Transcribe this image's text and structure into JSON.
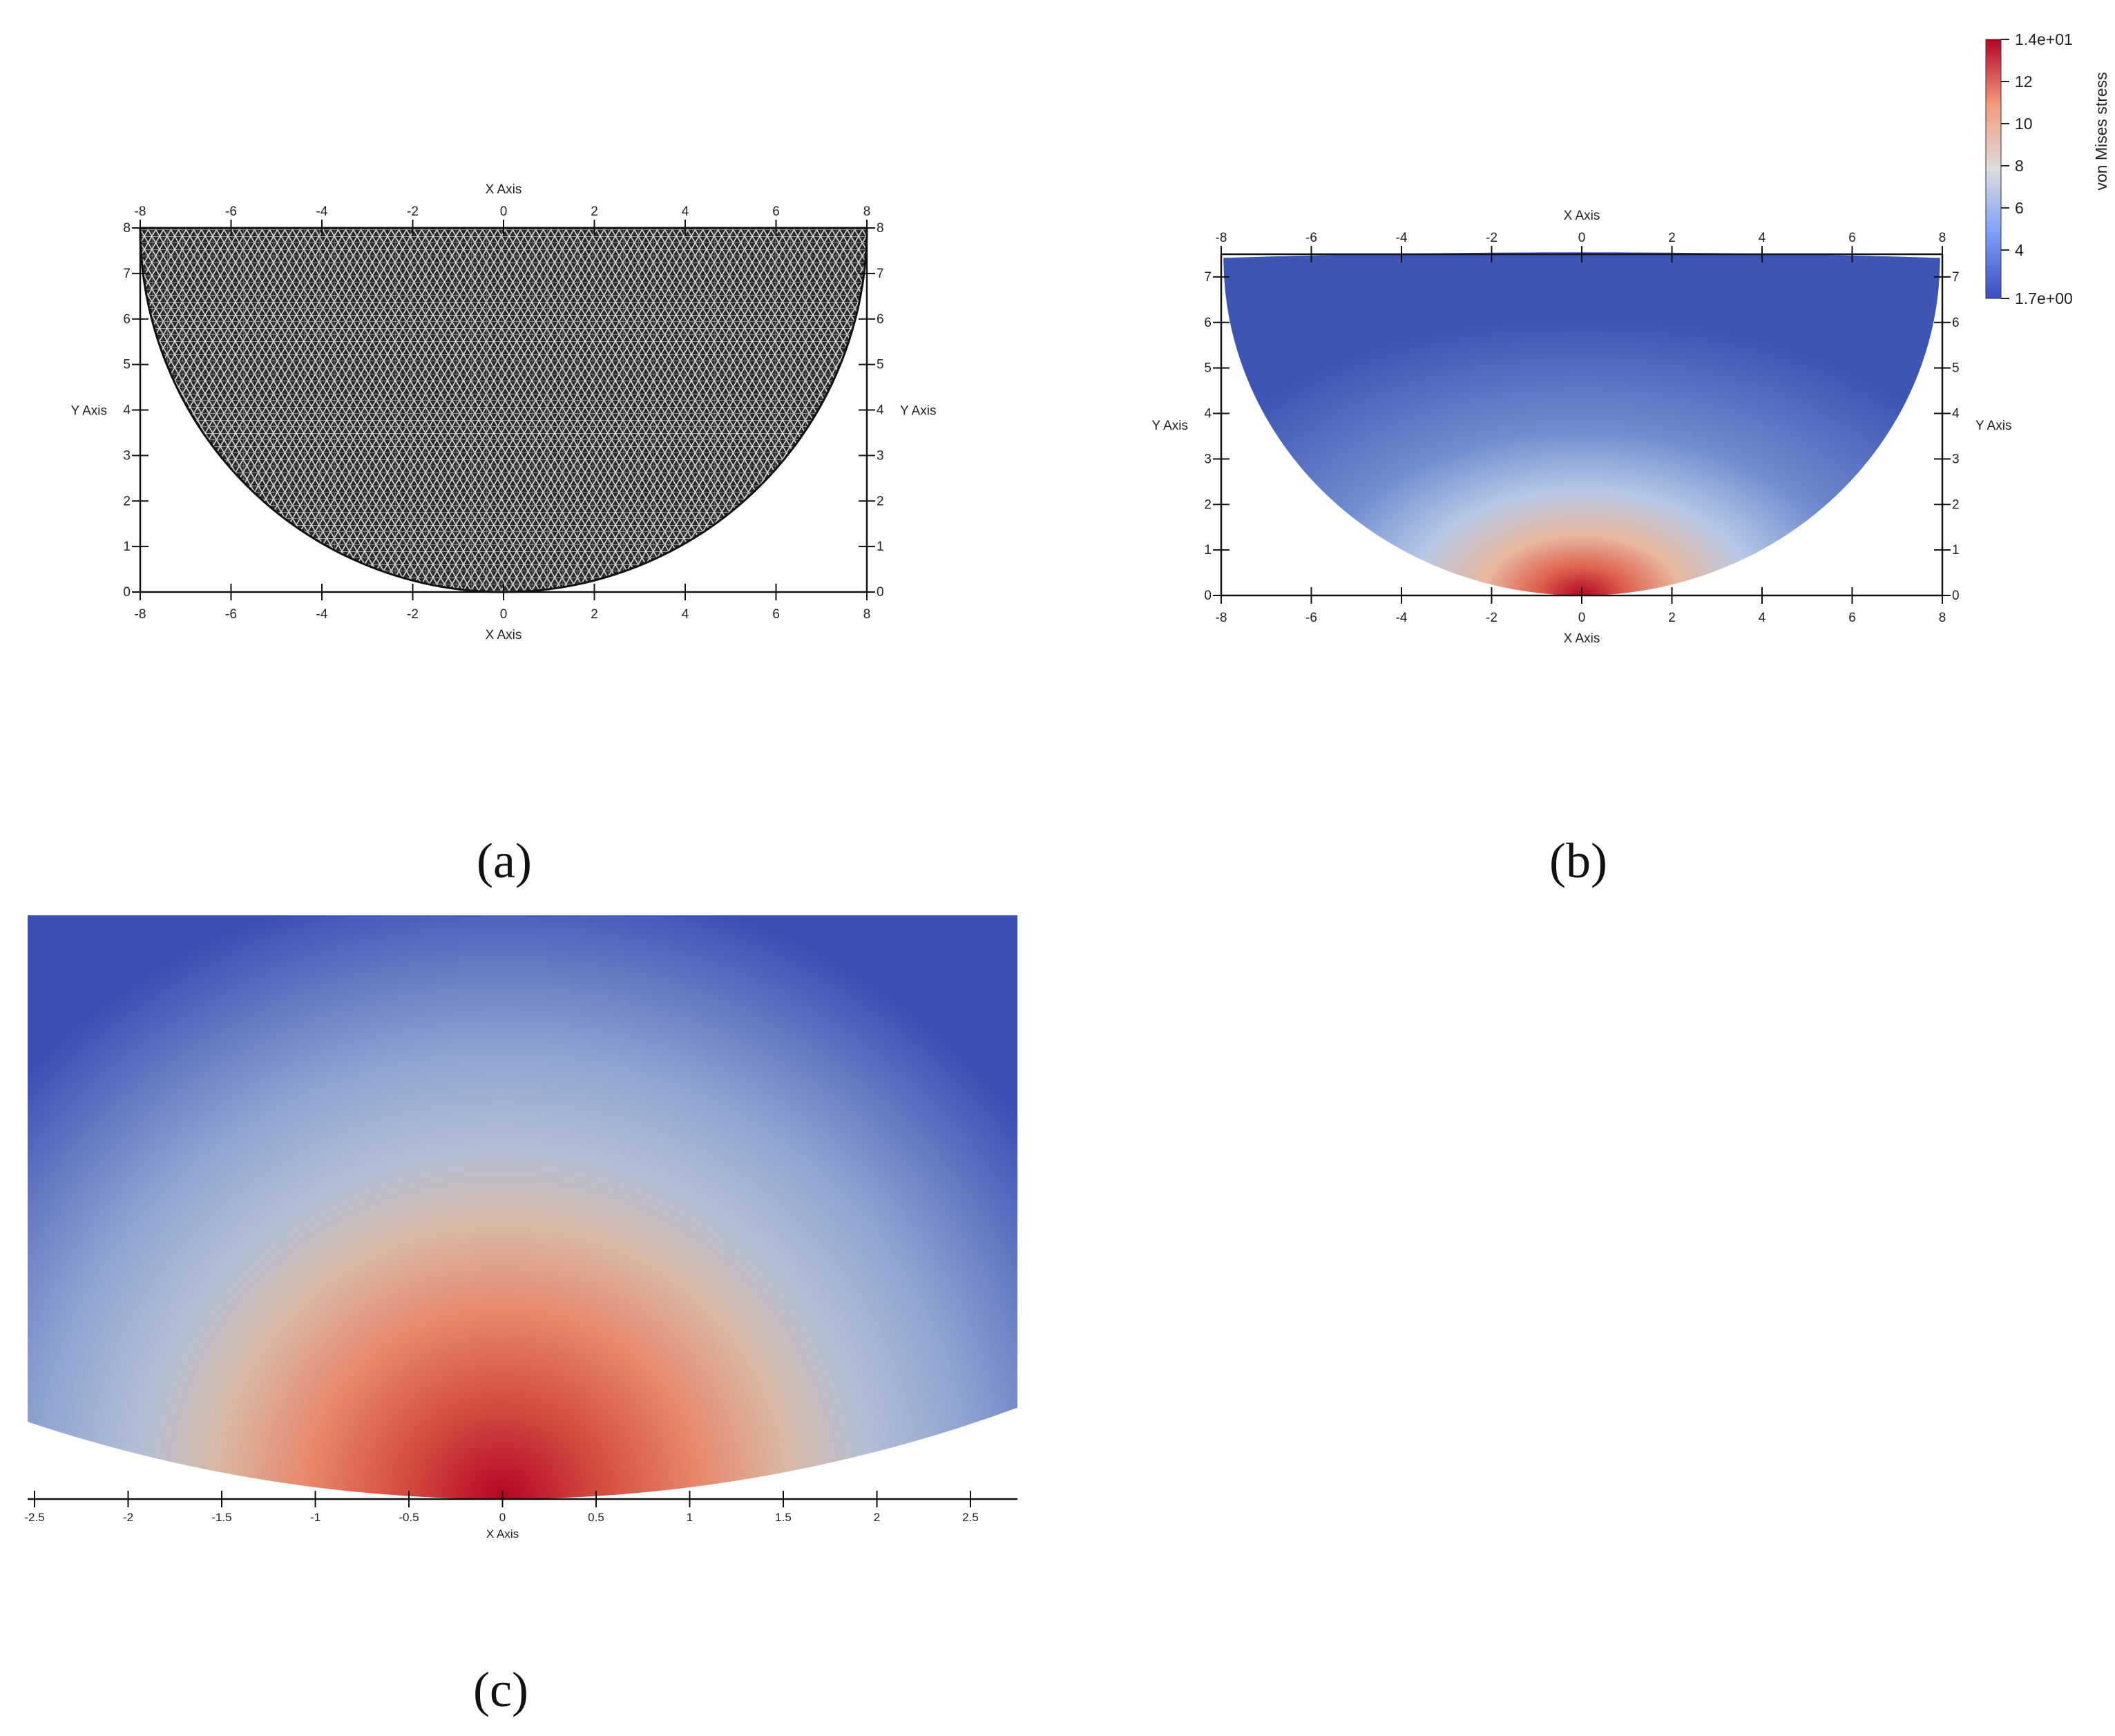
{
  "captions": {
    "a": "(a)",
    "b": "(b)",
    "c": "(c)"
  },
  "colormap": {
    "low": "#3b4cc0",
    "mid": "#dddddd",
    "high": "#b40426"
  },
  "chart_data": [
    {
      "id": "a",
      "type": "mesh",
      "xlabel_top": "X Axis",
      "xlabel_bottom": "X Axis",
      "ylabel_left": "Y Axis",
      "ylabel_right": "Y Axis",
      "xlim": [
        -8,
        8
      ],
      "ylim": [
        0,
        8
      ],
      "x_ticks": [
        "-8",
        "-6",
        "-4",
        "-2",
        "0",
        "2",
        "4",
        "6",
        "8"
      ],
      "y_ticks": [
        "0",
        "1",
        "2",
        "3",
        "4",
        "5",
        "6",
        "7",
        "8"
      ],
      "geometry": "semicircle radius 8 centered at (0, 8)"
    },
    {
      "id": "b",
      "type": "heatmap",
      "xlabel_top": "X Axis",
      "xlabel_bottom": "X Axis",
      "ylabel_left": "Y Axis",
      "ylabel_right": "Y Axis",
      "xlim": [
        -8,
        8
      ],
      "ylim": [
        0,
        7.5
      ],
      "x_ticks": [
        "-8",
        "-6",
        "-4",
        "-2",
        "0",
        "2",
        "4",
        "6",
        "8"
      ],
      "y_ticks": [
        "0",
        "1",
        "2",
        "3",
        "4",
        "5",
        "6",
        "7"
      ],
      "colorbar": {
        "title": "von Mises stress",
        "min_label": "1.7e+00",
        "max_label": "1.4e+01",
        "min": 1.7,
        "max": 14,
        "ticks": [
          "4",
          "6",
          "8",
          "10",
          "12"
        ]
      },
      "peak": {
        "x": 0,
        "y": 0,
        "value": 14
      }
    },
    {
      "id": "c",
      "type": "heatmap",
      "xlabel": "X Axis",
      "xlim": [
        -2.5,
        2.75
      ],
      "x_ticks": [
        "-2.5",
        "-2",
        "-1.5",
        "-1",
        "-0.5",
        "0",
        "0.5",
        "1",
        "1.5",
        "2",
        "2.5"
      ],
      "peak": {
        "x": 0,
        "y": 0,
        "value": 14
      }
    }
  ]
}
